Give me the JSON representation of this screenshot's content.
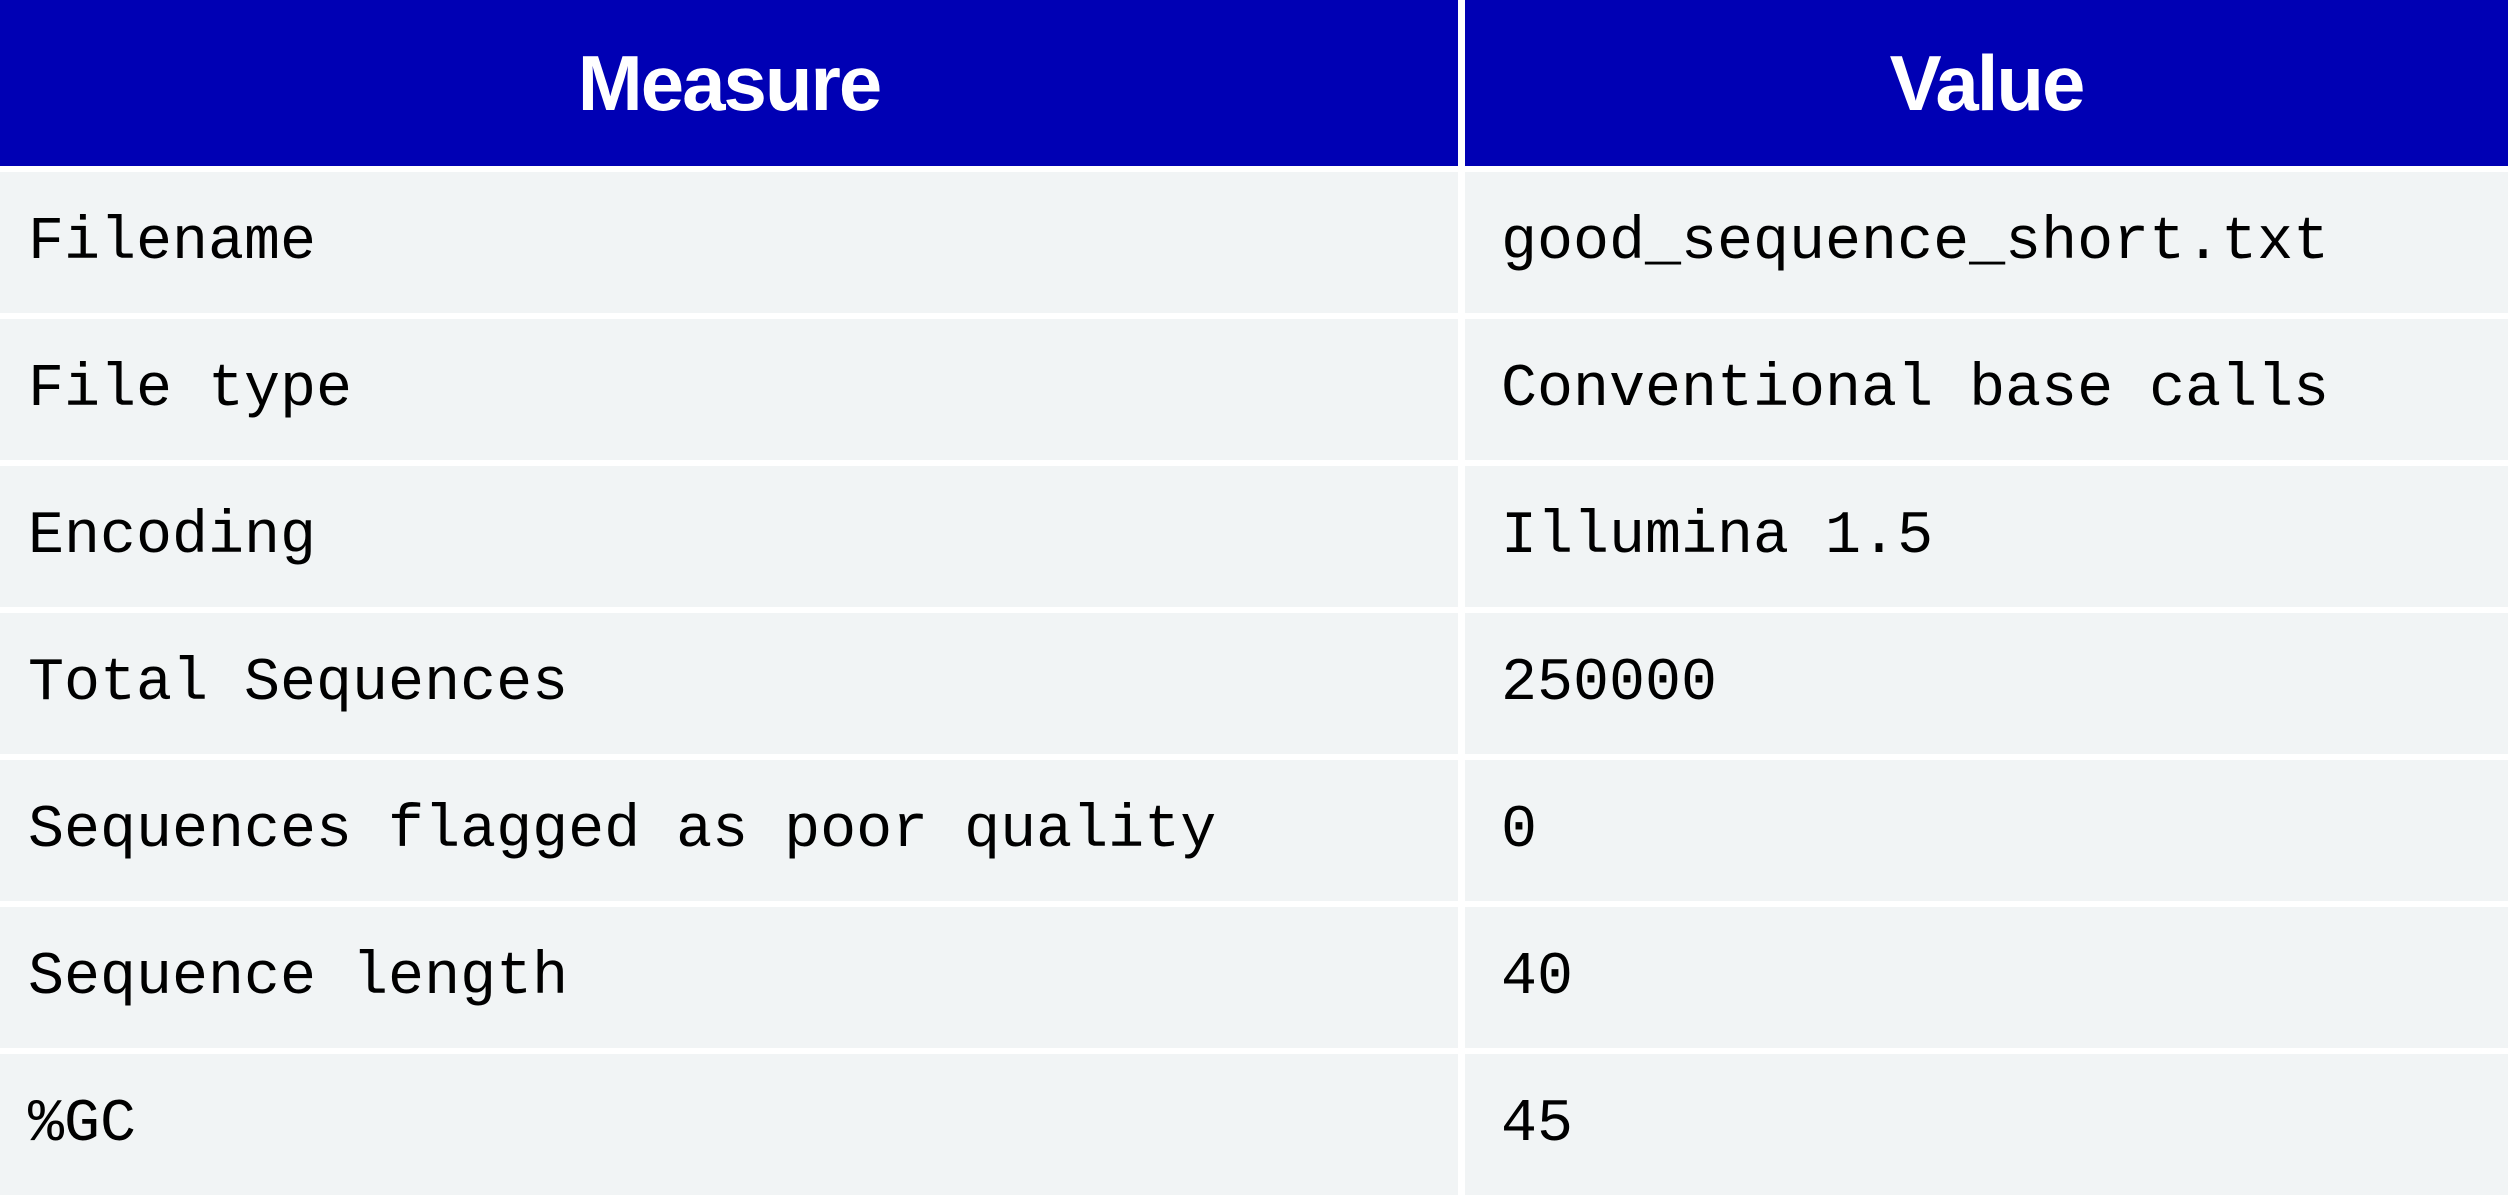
{
  "table": {
    "header": {
      "measure": "Measure",
      "value": "Value"
    },
    "rows": [
      {
        "measure": "Filename",
        "value": "good_sequence_short.txt"
      },
      {
        "measure": "File type",
        "value": "Conventional base calls"
      },
      {
        "measure": "Encoding",
        "value": "Illumina 1.5"
      },
      {
        "measure": "Total Sequences",
        "value": "250000"
      },
      {
        "measure": "Sequences flagged as poor quality",
        "value": "0"
      },
      {
        "measure": "Sequence length",
        "value": "40"
      },
      {
        "measure": "%GC",
        "value": "45"
      }
    ]
  },
  "colors": {
    "header_background": "#0000b4",
    "header_text": "#ffffff",
    "row_background": "#f1f4f5",
    "grid_lines": "#ffffff"
  }
}
